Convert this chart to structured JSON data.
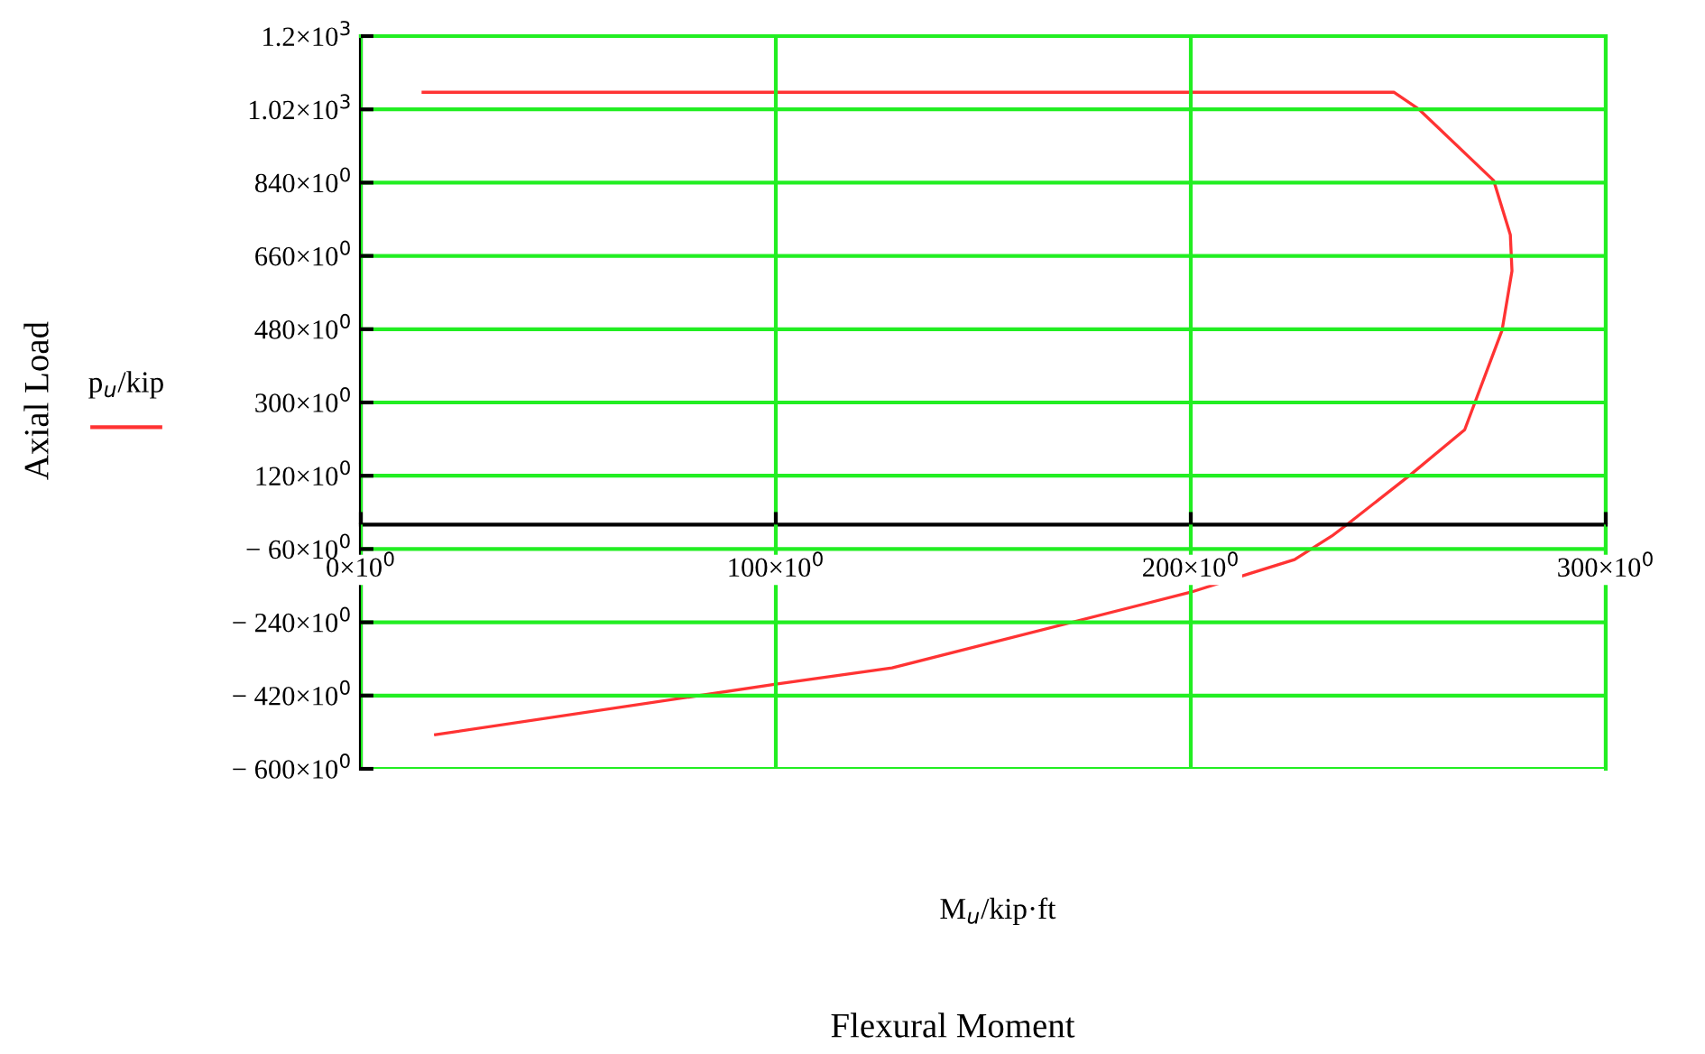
{
  "chart_data": {
    "type": "line",
    "annotations": [
      "M$_{u}$/kip·ft",
      "Flexural Moment",
      "Axial Load"
    ],
    "x": [
      15,
      249,
      255,
      273,
      277,
      277.4,
      275,
      266,
      253,
      238,
      234,
      225,
      214,
      200,
      128,
      100,
      18
    ],
    "series": [
      {
        "name": "p$_{u}$/kip",
        "color": "#ff3333",
        "values": [
          1062,
          1062,
          1020,
          845,
          712,
          623,
          477,
          233,
          123,
          3,
          -28,
          -86,
          -121,
          -166,
          -352,
          -392,
          -516
        ]
      }
    ],
    "xlim": [
      0,
      300
    ],
    "ylim": [
      -600,
      1200
    ],
    "xticks": [
      {
        "value": 0,
        "label": "0×10$^{0}$"
      },
      {
        "value": 100,
        "label": "100×10$^{0}$"
      },
      {
        "value": 200,
        "label": "200×10$^{0}$"
      },
      {
        "value": 300,
        "label": "300×10$^{0}$"
      }
    ],
    "yticks": [
      {
        "value": -600,
        "label": "− 600×10$^{0}$"
      },
      {
        "value": -420,
        "label": "− 420×10$^{0}$"
      },
      {
        "value": -240,
        "label": "− 240×10$^{0}$"
      },
      {
        "value": -60,
        "label": "− 60×10$^{0}$"
      },
      {
        "value": 120,
        "label": "120×10$^{0}$"
      },
      {
        "value": 300,
        "label": "300×10$^{0}$"
      },
      {
        "value": 480,
        "label": "480×10$^{0}$"
      },
      {
        "value": 660,
        "label": "660×10$^{0}$"
      },
      {
        "value": 840,
        "label": "840×10$^{0}$"
      },
      {
        "value": 1020,
        "label": "1.02×10$^{3}$"
      },
      {
        "value": 1200,
        "label": "1.2×10$^{3}$"
      }
    ],
    "grid": true,
    "legend": "left",
    "marker": "none",
    "line_style": "solid"
  }
}
